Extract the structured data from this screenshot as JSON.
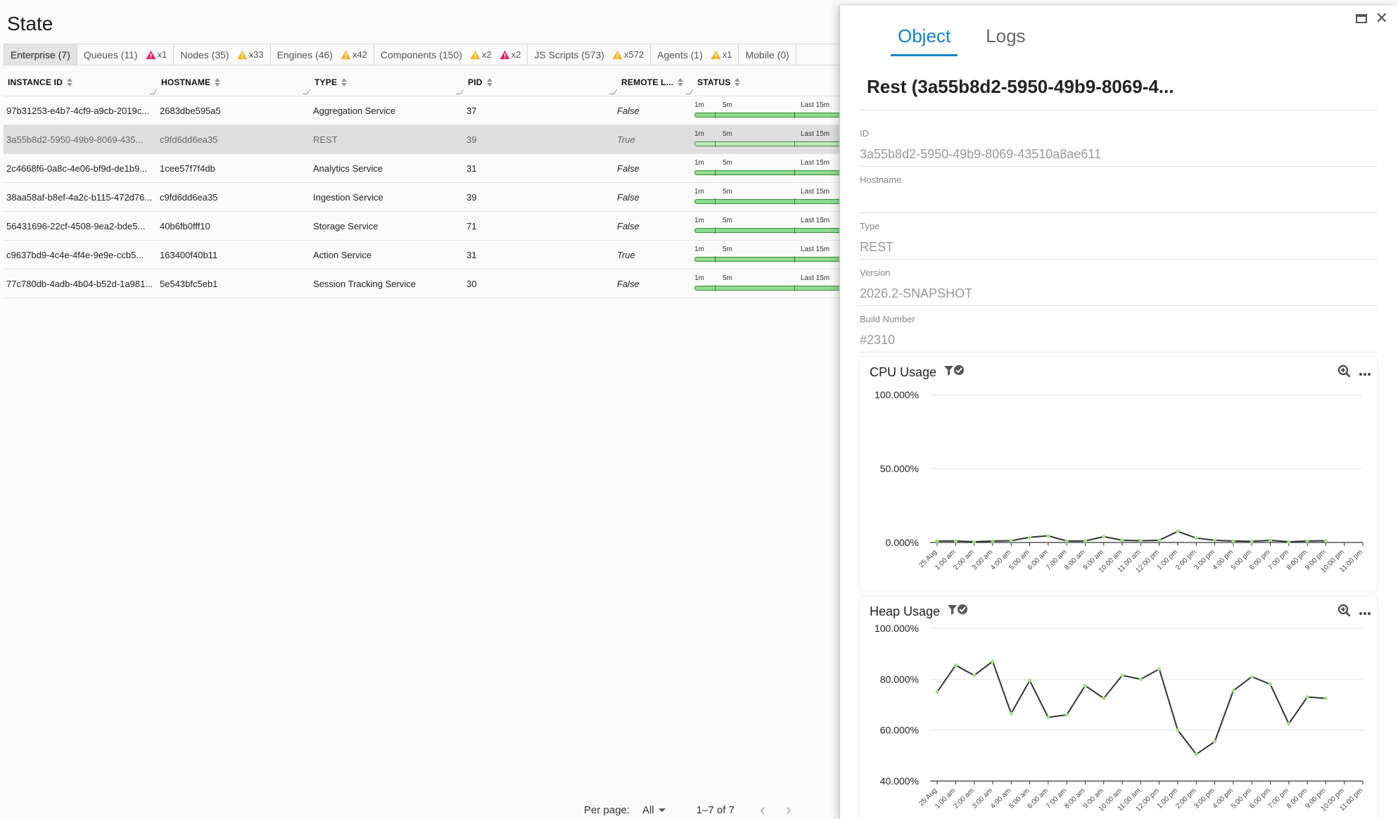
{
  "page": {
    "title": "State"
  },
  "tabs": [
    {
      "label": "Enterprise (7)",
      "active": true,
      "warnings": []
    },
    {
      "label": "Queues (11)",
      "active": false,
      "warnings": [
        {
          "level": "error",
          "count": "x1"
        }
      ]
    },
    {
      "label": "Nodes (35)",
      "active": false,
      "warnings": [
        {
          "level": "warning",
          "count": "x33"
        }
      ]
    },
    {
      "label": "Engines (46)",
      "active": false,
      "warnings": [
        {
          "level": "warning",
          "count": "x42"
        }
      ]
    },
    {
      "label": "Components (150)",
      "active": false,
      "warnings": [
        {
          "level": "warning",
          "count": "x2"
        },
        {
          "level": "error",
          "count": "x2"
        }
      ]
    },
    {
      "label": "JS Scripts (573)",
      "active": false,
      "warnings": [
        {
          "level": "warning",
          "count": "x572"
        }
      ]
    },
    {
      "label": "Agents (1)",
      "active": false,
      "warnings": [
        {
          "level": "warning",
          "count": "x1"
        }
      ]
    },
    {
      "label": "Mobile (0)",
      "active": false,
      "warnings": []
    }
  ],
  "table": {
    "columns": [
      "INSTANCE ID",
      "HOSTNAME",
      "TYPE",
      "PID",
      "REMOTE L...",
      "STATUS"
    ],
    "status_labels": {
      "one": "1m",
      "five": "5m",
      "fifteen": "Last 15m"
    },
    "rows": [
      {
        "id": "97b31253-e4b7-4cf9-a9cb-2019c...",
        "host": "2683dbe595a5",
        "type": "Aggregation Service",
        "pid": "37",
        "remote": "False",
        "selected": false
      },
      {
        "id": "3a55b8d2-5950-49b9-8069-435...",
        "host": "c9fd6dd6ea35",
        "type": "REST",
        "pid": "39",
        "remote": "True",
        "selected": true
      },
      {
        "id": "2c4668f6-0a8c-4e06-bf9d-de1b9...",
        "host": "1cee57f7f4db",
        "type": "Analytics Service",
        "pid": "31",
        "remote": "False",
        "selected": false
      },
      {
        "id": "38aa58af-b8ef-4a2c-b115-472d76...",
        "host": "c9fd6dd6ea35",
        "type": "Ingestion Service",
        "pid": "39",
        "remote": "False",
        "selected": false
      },
      {
        "id": "56431696-22cf-4508-9ea2-bde5...",
        "host": "40b6fb0fff10",
        "type": "Storage Service",
        "pid": "71",
        "remote": "False",
        "selected": false
      },
      {
        "id": "c9637bd9-4c4e-4f4e-9e9e-ccb5...",
        "host": "163400f40b11",
        "type": "Action Service",
        "pid": "31",
        "remote": "True",
        "selected": false
      },
      {
        "id": "77c780db-4adb-4b04-b52d-1a981...",
        "host": "5e543bfc5eb1",
        "type": "Session Tracking Service",
        "pid": "30",
        "remote": "False",
        "selected": false
      }
    ]
  },
  "pager": {
    "per_page_label": "Per page:",
    "per_page_value": "All",
    "range": "1–7 of 7",
    "prev": "‹",
    "next": "›"
  },
  "drawer": {
    "tabs": [
      {
        "label": "Object",
        "active": true
      },
      {
        "label": "Logs",
        "active": false
      }
    ],
    "maximize_icon": "maximize-icon",
    "close_icon": "close-icon",
    "close_glyph": "✕",
    "title": "Rest (3a55b8d2-5950-49b9-8069-4...",
    "fields": [
      {
        "label": "ID",
        "value": "3a55b8d2-5950-49b9-8069-43510a8ae611"
      },
      {
        "label": "Hostname",
        "value": ""
      },
      {
        "label": "Type",
        "value": "REST"
      },
      {
        "label": "Version",
        "value": "2026.2-SNAPSHOT"
      },
      {
        "label": "Build Number",
        "value": "#2310"
      }
    ]
  },
  "colors": {
    "accent": "#1483c7",
    "status_green": "#8cdd8c",
    "warning": "#f0b429",
    "error": "#e0245e",
    "line": "#333333"
  },
  "chart_data": [
    {
      "type": "line",
      "title": "CPU Usage",
      "x": [
        "25 Aug",
        "1:00 am",
        "2:00 am",
        "3:00 am",
        "4:00 am",
        "5:00 am",
        "6:00 am",
        "7:00 am",
        "8:00 am",
        "9:00 am",
        "10:00 am",
        "11:00 am",
        "12:00 pm",
        "1:00 pm",
        "2:00 pm",
        "3:00 pm",
        "4:00 pm",
        "5:00 pm",
        "6:00 pm",
        "7:00 pm",
        "8:00 pm",
        "9:00 pm",
        "10:00 pm",
        "11:00 pm"
      ],
      "series": [
        {
          "values": [
            1.0,
            1.0,
            0.5,
            1.0,
            1.2,
            3.5,
            4.5,
            1.0,
            1.0,
            4.0,
            1.5,
            1.2,
            1.5,
            7.5,
            3.0,
            1.5,
            1.0,
            0.8,
            1.5,
            0.5,
            1.0,
            1.2,
            null,
            null
          ]
        }
      ],
      "yticks": [
        "100.000%",
        "50.000%",
        "0.000%"
      ],
      "ylim": [
        0,
        100
      ],
      "grid": true
    },
    {
      "type": "line",
      "title": "Heap Usage",
      "x": [
        "25 Aug",
        "1:00 am",
        "2:00 am",
        "3:00 am",
        "4:00 am",
        "5:00 am",
        "6:00 am",
        "7:00 am",
        "8:00 am",
        "9:00 am",
        "10:00 am",
        "11:00 am",
        "12:00 pm",
        "1:00 pm",
        "2:00 pm",
        "3:00 pm",
        "4:00 pm",
        "5:00 pm",
        "6:00 pm",
        "7:00 pm",
        "8:00 pm",
        "9:00 pm",
        "10:00 pm",
        "11:00 pm"
      ],
      "series": [
        {
          "values": [
            75.0,
            85.5,
            81.5,
            87.0,
            66.5,
            79.5,
            65.0,
            66.0,
            77.5,
            72.5,
            81.5,
            80.0,
            84.0,
            60.0,
            50.5,
            55.5,
            75.5,
            81.0,
            78.0,
            62.5,
            73.0,
            72.5,
            null,
            null
          ]
        }
      ],
      "yticks": [
        "100.000%",
        "80.000%",
        "60.000%",
        "40.000%"
      ],
      "ylim": [
        40,
        100
      ],
      "grid": true
    }
  ]
}
